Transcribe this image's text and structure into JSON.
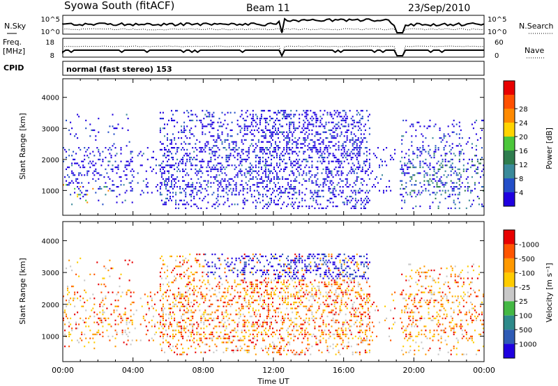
{
  "header": {
    "title": "Syowa South (fitACF)",
    "beam": "Beam 11",
    "date": "23/Sep/2010"
  },
  "noise_panel": {
    "left_label": "N.Sky",
    "left_ticks": [
      "10^5",
      "10^0"
    ],
    "right_ticks": [
      "10^5",
      "10^0"
    ],
    "right_label": "N.Search"
  },
  "freq_panel": {
    "left_label_1": "Freq.",
    "left_label_2": "[MHz]",
    "left_ticks": [
      "18",
      "8"
    ],
    "right_ticks": [
      "60",
      "0"
    ],
    "right_label": "Nave"
  },
  "cpid": {
    "label": "CPID",
    "value": "normal (fast stereo) 153"
  },
  "chart_data": [
    {
      "type": "heatmap",
      "name": "power",
      "ylabel": "Slant Range [km]",
      "ylim": [
        200,
        4600
      ],
      "yticks": [
        "1000",
        "2000",
        "3000",
        "4000"
      ],
      "xlim": [
        0,
        24
      ],
      "colorbar": {
        "label": "Power [dB]",
        "ticks": [
          "4",
          "8",
          "12",
          "16",
          "20",
          "24",
          "28"
        ],
        "colors": [
          "#1f00e0",
          "#244fc8",
          "#3a8a9a",
          "#2f7d4e",
          "#4cc73b",
          "#ffd400",
          "#ff8a00",
          "#ff5000",
          "#e80000"
        ]
      }
    },
    {
      "type": "heatmap",
      "name": "velocity",
      "ylabel": "Slant Range [km]",
      "ylim": [
        200,
        4600
      ],
      "yticks": [
        "1000",
        "2000",
        "3000",
        "4000"
      ],
      "xlim": [
        0,
        24
      ],
      "xticks": [
        "00:00",
        "04:00",
        "08:00",
        "12:00",
        "16:00",
        "20:00",
        "00:00"
      ],
      "xlabel": "Time UT",
      "colorbar": {
        "label": "Velocity [m s⁻¹]",
        "ticks": [
          "1000",
          "500",
          "100",
          "25",
          "-25",
          "-100",
          "-500",
          "-1000"
        ],
        "colors": [
          "#1f00e0",
          "#2f5bb5",
          "#2e8a8a",
          "#44b844",
          "#c8c8c8",
          "#ffcc00",
          "#ff9900",
          "#ff5500",
          "#e80000"
        ]
      }
    }
  ]
}
